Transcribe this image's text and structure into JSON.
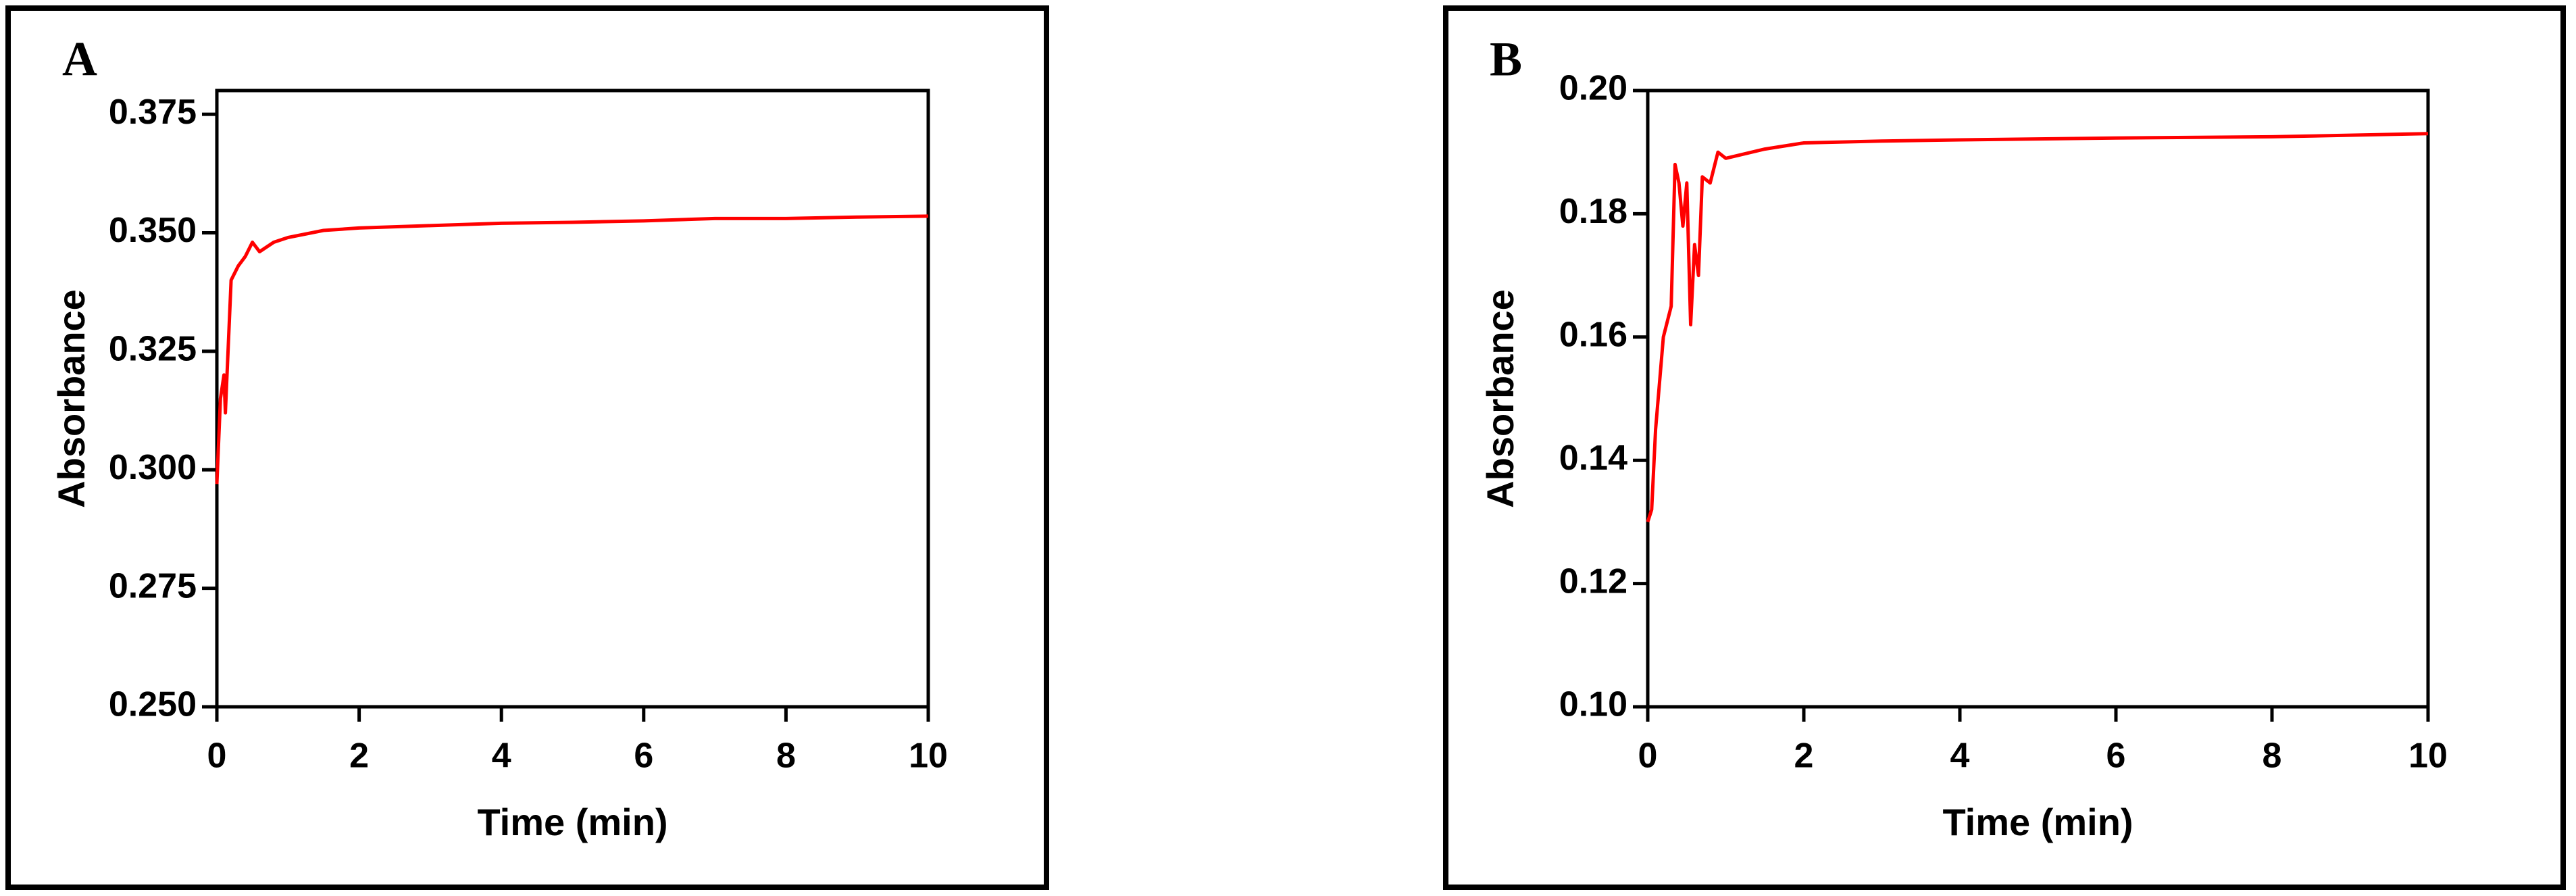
{
  "chart_data": [
    {
      "type": "line",
      "panel_label": "A",
      "x_label": "Time (min)",
      "y_label": "Absorbance",
      "xlim": [
        0,
        10
      ],
      "xticks": [
        0,
        2,
        4,
        6,
        8,
        10
      ],
      "ylim": [
        0.25,
        0.38
      ],
      "yticks": [
        {
          "value": 0.25,
          "label": "0.250"
        },
        0.275,
        {
          "value": 0.3,
          "label": "0.300"
        },
        0.325,
        {
          "value": 0.35,
          "label": "0.350"
        },
        0.375
      ],
      "color": "#ff0000",
      "x": [
        0,
        0.05,
        0.1,
        0.12,
        0.2,
        0.3,
        0.4,
        0.5,
        0.6,
        0.8,
        1,
        1.5,
        2,
        3,
        4,
        5,
        6,
        7,
        8,
        9,
        10
      ],
      "values": [
        0.297,
        0.315,
        0.32,
        0.312,
        0.34,
        0.343,
        0.345,
        0.348,
        0.346,
        0.348,
        0.349,
        0.3505,
        0.351,
        0.3515,
        0.352,
        0.3522,
        0.3525,
        0.353,
        0.353,
        0.3533,
        0.3535
      ]
    },
    {
      "type": "line",
      "panel_label": "B",
      "x_label": "Time (min)",
      "y_label": "Absorbance",
      "xlim": [
        0,
        10
      ],
      "xticks": [
        0,
        2,
        4,
        6,
        8,
        10
      ],
      "ylim": [
        0.1,
        0.2
      ],
      "yticks": [
        {
          "value": 0.1,
          "label": "0.10"
        },
        0.12,
        0.14,
        0.16,
        0.18,
        {
          "value": 0.2,
          "label": "0.20"
        }
      ],
      "color": "#ff0000",
      "x": [
        0,
        0.05,
        0.1,
        0.2,
        0.3,
        0.35,
        0.4,
        0.45,
        0.5,
        0.55,
        0.6,
        0.65,
        0.7,
        0.8,
        0.9,
        1,
        1.5,
        2,
        3,
        4,
        6,
        8,
        10
      ],
      "values": [
        0.13,
        0.132,
        0.145,
        0.16,
        0.165,
        0.188,
        0.185,
        0.178,
        0.185,
        0.162,
        0.175,
        0.17,
        0.186,
        0.185,
        0.19,
        0.189,
        0.1905,
        0.1915,
        0.1918,
        0.192,
        0.1923,
        0.1925,
        0.193
      ]
    }
  ]
}
